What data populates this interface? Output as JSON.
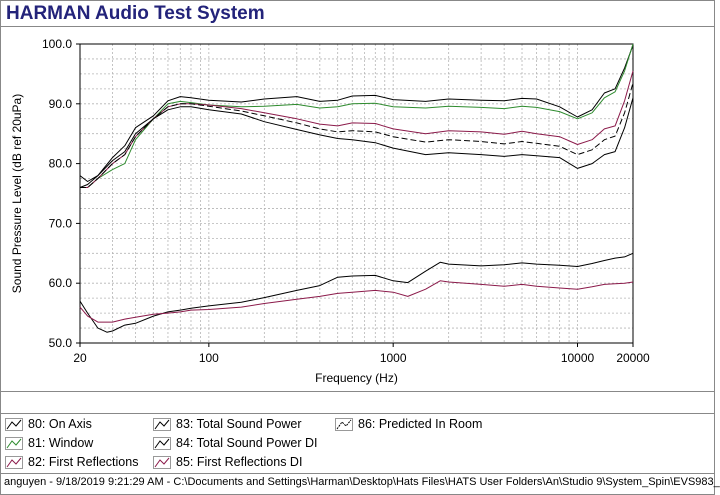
{
  "app": {
    "title": "HARMAN Audio Test System"
  },
  "footer": {
    "status": "anguyen - 9/18/2019 9:21:29 AM - C:\\Documents and Settings\\Harman\\Desktop\\Hats Files\\HATS User Folders\\An\\Studio 9\\System_Spin\\EVS983_"
  },
  "legend": [
    {
      "label": "80: On Axis",
      "color": "#000000",
      "dash": false
    },
    {
      "label": "81: Window",
      "color": "#2e8b2e",
      "dash": false
    },
    {
      "label": "82: First Reflections",
      "color": "#8b1a4a",
      "dash": false
    },
    {
      "label": "83: Total Sound Power",
      "color": "#000000",
      "dash": false
    },
    {
      "label": "84: Total Sound Power DI",
      "color": "#000000",
      "dash": false
    },
    {
      "label": "85: First Reflections DI",
      "color": "#8b1a4a",
      "dash": false
    },
    {
      "label": "86: Predicted In Room",
      "color": "#000000",
      "dash": true
    }
  ],
  "chart_data": {
    "type": "line",
    "title": "",
    "xlabel": "Frequency (Hz)",
    "ylabel": "Sound Pressure Level (dB ref 20uPa)",
    "xscale": "log",
    "xlim": [
      20,
      20000
    ],
    "ylim": [
      50,
      100
    ],
    "grid": true,
    "legend_position": "bottom",
    "x_tick_labels": [
      {
        "value": 20,
        "label": "20"
      },
      {
        "value": 100,
        "label": "100"
      },
      {
        "value": 1000,
        "label": "1000"
      },
      {
        "value": 10000,
        "label": "10000"
      },
      {
        "value": 20000,
        "label": "20000"
      }
    ],
    "y_tick_labels": [
      {
        "value": 50,
        "label": "50.0"
      },
      {
        "value": 60,
        "label": "60.0"
      },
      {
        "value": 70,
        "label": "70.0"
      },
      {
        "value": 80,
        "label": "80.0"
      },
      {
        "value": 90,
        "label": "90.0"
      },
      {
        "value": 100,
        "label": "100.0"
      }
    ],
    "series": [
      {
        "name": "80: On Axis",
        "color": "#000000",
        "dash": false,
        "points": [
          [
            20,
            78
          ],
          [
            22,
            77
          ],
          [
            25,
            78
          ],
          [
            30,
            81
          ],
          [
            35,
            83
          ],
          [
            40,
            86
          ],
          [
            50,
            88
          ],
          [
            60,
            90.5
          ],
          [
            70,
            91.2
          ],
          [
            80,
            91
          ],
          [
            100,
            90.6
          ],
          [
            150,
            90.3
          ],
          [
            200,
            90.8
          ],
          [
            300,
            91.2
          ],
          [
            400,
            90.4
          ],
          [
            500,
            90.6
          ],
          [
            600,
            91.3
          ],
          [
            800,
            91.4
          ],
          [
            1000,
            90.7
          ],
          [
            1500,
            90.4
          ],
          [
            2000,
            90.8
          ],
          [
            3000,
            90.6
          ],
          [
            4000,
            90.5
          ],
          [
            5000,
            90.9
          ],
          [
            6000,
            90.8
          ],
          [
            8000,
            89.5
          ],
          [
            10000,
            87.8
          ],
          [
            12000,
            89
          ],
          [
            14000,
            91.8
          ],
          [
            16000,
            92.5
          ],
          [
            18000,
            96
          ],
          [
            20000,
            99.8
          ]
        ]
      },
      {
        "name": "81: Window",
        "color": "#2e8b2e",
        "dash": false,
        "points": [
          [
            20,
            76
          ],
          [
            22,
            76
          ],
          [
            25,
            77.5
          ],
          [
            30,
            79
          ],
          [
            35,
            80
          ],
          [
            40,
            84
          ],
          [
            50,
            87.5
          ],
          [
            60,
            90
          ],
          [
            70,
            90.4
          ],
          [
            80,
            90.2
          ],
          [
            100,
            89.8
          ],
          [
            150,
            89.5
          ],
          [
            200,
            89.6
          ],
          [
            300,
            89.9
          ],
          [
            400,
            89.3
          ],
          [
            500,
            89.5
          ],
          [
            600,
            90
          ],
          [
            800,
            90.1
          ],
          [
            1000,
            89.5
          ],
          [
            1500,
            89.3
          ],
          [
            2000,
            89.6
          ],
          [
            3000,
            89.4
          ],
          [
            4000,
            89.2
          ],
          [
            5000,
            89.6
          ],
          [
            6000,
            89.4
          ],
          [
            8000,
            88.7
          ],
          [
            10000,
            87.5
          ],
          [
            12000,
            88.5
          ],
          [
            14000,
            91
          ],
          [
            16000,
            92
          ],
          [
            18000,
            95.5
          ],
          [
            20000,
            100
          ]
        ]
      },
      {
        "name": "82: First Reflections",
        "color": "#8b1a4a",
        "dash": false,
        "points": [
          [
            20,
            76
          ],
          [
            22,
            76
          ],
          [
            25,
            77.5
          ],
          [
            30,
            80
          ],
          [
            35,
            81.5
          ],
          [
            40,
            84.5
          ],
          [
            50,
            87.5
          ],
          [
            60,
            89.5
          ],
          [
            70,
            90
          ],
          [
            80,
            90
          ],
          [
            100,
            89.8
          ],
          [
            150,
            89.2
          ],
          [
            200,
            88.5
          ],
          [
            300,
            87.5
          ],
          [
            400,
            86.6
          ],
          [
            500,
            86.3
          ],
          [
            600,
            86.8
          ],
          [
            800,
            86.7
          ],
          [
            1000,
            85.8
          ],
          [
            1500,
            85
          ],
          [
            2000,
            85.5
          ],
          [
            3000,
            85.3
          ],
          [
            4000,
            84.9
          ],
          [
            5000,
            85.4
          ],
          [
            6000,
            85
          ],
          [
            8000,
            84.5
          ],
          [
            10000,
            83.2
          ],
          [
            12000,
            84
          ],
          [
            14000,
            85.8
          ],
          [
            16000,
            86.3
          ],
          [
            18000,
            90.5
          ],
          [
            20000,
            95.5
          ]
        ]
      },
      {
        "name": "83: Total Sound Power",
        "color": "#000000",
        "dash": false,
        "points": [
          [
            20,
            76
          ],
          [
            22,
            76.5
          ],
          [
            25,
            78
          ],
          [
            30,
            80.5
          ],
          [
            35,
            82
          ],
          [
            40,
            85
          ],
          [
            50,
            87.5
          ],
          [
            60,
            89
          ],
          [
            70,
            89.5
          ],
          [
            80,
            89.5
          ],
          [
            100,
            89
          ],
          [
            150,
            88.3
          ],
          [
            200,
            87
          ],
          [
            300,
            85.7
          ],
          [
            400,
            84.8
          ],
          [
            500,
            84.2
          ],
          [
            600,
            84
          ],
          [
            800,
            83.5
          ],
          [
            1000,
            82.6
          ],
          [
            1500,
            81.5
          ],
          [
            2000,
            81.8
          ],
          [
            3000,
            81.5
          ],
          [
            4000,
            81.2
          ],
          [
            5000,
            81.5
          ],
          [
            6000,
            81.3
          ],
          [
            8000,
            81
          ],
          [
            10000,
            79.2
          ],
          [
            12000,
            80
          ],
          [
            14000,
            81.5
          ],
          [
            16000,
            82
          ],
          [
            18000,
            86
          ],
          [
            20000,
            91
          ]
        ]
      },
      {
        "name": "84: Total Sound Power DI",
        "color": "#000000",
        "dash": false,
        "points": [
          [
            20,
            57
          ],
          [
            22,
            55
          ],
          [
            25,
            52.5
          ],
          [
            28,
            51.8
          ],
          [
            30,
            52
          ],
          [
            35,
            53
          ],
          [
            40,
            53.3
          ],
          [
            50,
            54.5
          ],
          [
            60,
            55.2
          ],
          [
            70,
            55.5
          ],
          [
            80,
            55.8
          ],
          [
            100,
            56.2
          ],
          [
            150,
            56.8
          ],
          [
            200,
            57.6
          ],
          [
            300,
            58.8
          ],
          [
            400,
            59.6
          ],
          [
            500,
            61
          ],
          [
            600,
            61.2
          ],
          [
            800,
            61.3
          ],
          [
            1000,
            60.4
          ],
          [
            1200,
            60.1
          ],
          [
            1500,
            62
          ],
          [
            1800,
            63.5
          ],
          [
            2000,
            63.2
          ],
          [
            3000,
            62.9
          ],
          [
            4000,
            63.1
          ],
          [
            5000,
            63.4
          ],
          [
            6000,
            63.2
          ],
          [
            8000,
            63
          ],
          [
            10000,
            62.8
          ],
          [
            12000,
            63.3
          ],
          [
            14000,
            63.8
          ],
          [
            16000,
            64.2
          ],
          [
            18000,
            64.4
          ],
          [
            20000,
            65
          ]
        ]
      },
      {
        "name": "85: First Reflections DI",
        "color": "#8b1a4a",
        "dash": false,
        "points": [
          [
            20,
            56
          ],
          [
            22,
            54.5
          ],
          [
            25,
            53.5
          ],
          [
            30,
            53.5
          ],
          [
            35,
            54
          ],
          [
            40,
            54.3
          ],
          [
            50,
            54.8
          ],
          [
            60,
            55
          ],
          [
            70,
            55.2
          ],
          [
            80,
            55.5
          ],
          [
            100,
            55.6
          ],
          [
            150,
            56
          ],
          [
            200,
            56.6
          ],
          [
            300,
            57.3
          ],
          [
            400,
            57.8
          ],
          [
            500,
            58.3
          ],
          [
            600,
            58.5
          ],
          [
            800,
            58.8
          ],
          [
            1000,
            58.5
          ],
          [
            1200,
            57.8
          ],
          [
            1500,
            59
          ],
          [
            1800,
            60.4
          ],
          [
            2000,
            60.2
          ],
          [
            3000,
            59.8
          ],
          [
            4000,
            59.5
          ],
          [
            5000,
            59.8
          ],
          [
            6000,
            59.5
          ],
          [
            8000,
            59.2
          ],
          [
            10000,
            59
          ],
          [
            12000,
            59.4
          ],
          [
            14000,
            59.8
          ],
          [
            16000,
            59.9
          ],
          [
            18000,
            60
          ],
          [
            20000,
            60.2
          ]
        ]
      },
      {
        "name": "86: Predicted In Room",
        "color": "#000000",
        "dash": true,
        "points": [
          [
            20,
            76
          ],
          [
            22,
            76
          ],
          [
            25,
            77.5
          ],
          [
            30,
            80
          ],
          [
            35,
            81.5
          ],
          [
            40,
            84.5
          ],
          [
            50,
            87.5
          ],
          [
            60,
            89.5
          ],
          [
            70,
            90
          ],
          [
            80,
            90
          ],
          [
            100,
            89.6
          ],
          [
            150,
            88.8
          ],
          [
            200,
            88
          ],
          [
            300,
            86.8
          ],
          [
            400,
            85.8
          ],
          [
            500,
            85.3
          ],
          [
            600,
            85.5
          ],
          [
            800,
            85.3
          ],
          [
            1000,
            84.5
          ],
          [
            1500,
            83.6
          ],
          [
            2000,
            84
          ],
          [
            3000,
            83.7
          ],
          [
            4000,
            83.3
          ],
          [
            5000,
            83.7
          ],
          [
            6000,
            83.4
          ],
          [
            8000,
            82.9
          ],
          [
            10000,
            81.5
          ],
          [
            12000,
            82.3
          ],
          [
            14000,
            84
          ],
          [
            16000,
            84.6
          ],
          [
            18000,
            88.5
          ],
          [
            20000,
            93.5
          ]
        ]
      }
    ]
  }
}
